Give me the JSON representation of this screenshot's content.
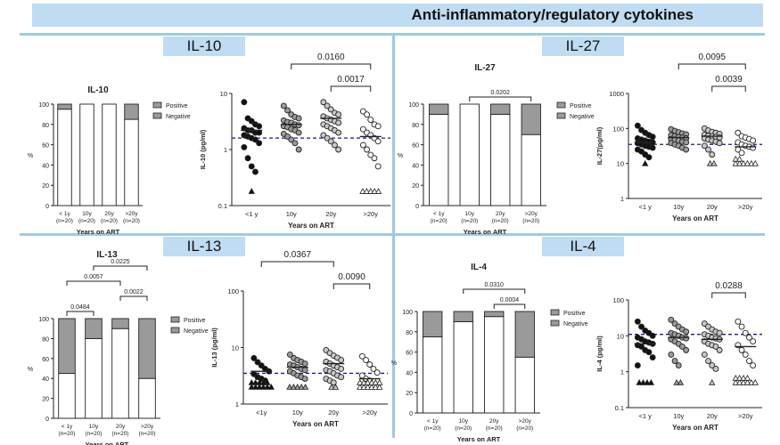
{
  "header": {
    "title": "Anti-inflammatory/regulatory cytokines"
  },
  "panels": [
    {
      "label": "IL-10"
    },
    {
      "label": "IL-27"
    },
    {
      "label": "IL-13"
    },
    {
      "label": "IL-4"
    }
  ],
  "colors": {
    "band": "#bfdcf2",
    "divider": "#9dcbe6",
    "negative": "#9a9a9a",
    "positive": "#ffffff",
    "median": "#1a1a8c"
  },
  "chart_data": [
    {
      "type": "bar",
      "stacked": true,
      "title": "IL-10",
      "categories": [
        "< 1y\n(n=20)",
        "10y\n(n=20)",
        "20y\n(n=20)",
        ">20y\n(n=20)"
      ],
      "series": [
        {
          "name": "Positive",
          "values": [
            95,
            100,
            100,
            85
          ]
        },
        {
          "name": "Negative",
          "values": [
            5,
            0,
            0,
            15
          ]
        }
      ],
      "ylabel": "%",
      "xlabel": "Years on ART",
      "ylim": [
        0,
        100
      ],
      "yticks": [
        "0",
        "20",
        "40",
        "60",
        "80",
        "100"
      ],
      "legend": "right"
    },
    {
      "type": "scatter",
      "ylabel": "IL-10 (pg/ml)",
      "xlabel": "Years on ART",
      "yscale": "log",
      "ylim": [
        0.1,
        10
      ],
      "yticks": [
        "0.1",
        "1",
        "10"
      ],
      "categories": [
        "<1 y",
        "10y",
        "20y",
        ">20y"
      ],
      "median_line": 1.6,
      "medians": [
        2.2,
        2.8,
        3.6,
        1.7
      ],
      "brackets": [
        {
          "from": 1,
          "to": 3,
          "label": "0.0160"
        },
        {
          "from": 2,
          "to": 3,
          "label": "0.0017"
        }
      ],
      "groups": [
        {
          "name": "<1 y",
          "fill": "#111111",
          "values": [
            7.0,
            3.6,
            3.2,
            2.8,
            2.6,
            2.4,
            2.2,
            2.2,
            2.0,
            2.0,
            1.8,
            1.7,
            1.6,
            1.5,
            1.3,
            1.1,
            0.7,
            0.5,
            0.4
          ],
          "below": [
            0.18
          ]
        },
        {
          "name": "10y",
          "fill": "#9a9a9a",
          "values": [
            6.0,
            5.0,
            4.2,
            3.8,
            3.6,
            3.3,
            3.1,
            3.0,
            2.8,
            2.7,
            2.6,
            2.5,
            2.3,
            2.2,
            2.0,
            1.9,
            1.7,
            1.5,
            1.3,
            1.0
          ],
          "below": []
        },
        {
          "name": "20y",
          "fill": "#c8c8c8",
          "values": [
            7.0,
            6.0,
            5.2,
            4.5,
            4.2,
            3.9,
            3.6,
            3.4,
            3.2,
            3.0,
            2.8,
            2.6,
            2.4,
            2.2,
            2.0,
            1.8,
            1.6,
            1.4,
            1.2,
            1.0
          ],
          "below": []
        },
        {
          "name": ">20y",
          "fill": "#ffffff",
          "values": [
            4.8,
            4.2,
            3.4,
            2.8,
            2.6,
            2.3,
            2.0,
            1.8,
            1.6,
            1.4,
            1.2,
            1.0,
            0.8,
            0.7,
            0.5
          ],
          "below": [
            0.18,
            0.18,
            0.18,
            0.18,
            0.18
          ]
        }
      ]
    },
    {
      "type": "bar",
      "stacked": true,
      "title": "IL-27",
      "categories": [
        "< 1y\n(n=20)",
        "10y\n(n=20)",
        "20y\n(n=20)",
        ">20y\n(n=20)"
      ],
      "series": [
        {
          "name": "Positive",
          "values": [
            90,
            100,
            90,
            70
          ]
        },
        {
          "name": "Negative",
          "values": [
            10,
            0,
            10,
            30
          ]
        }
      ],
      "ylabel": "%",
      "xlabel": "Years on ART",
      "ylim": [
        0,
        100
      ],
      "yticks": [
        "0",
        "20",
        "40",
        "60",
        "80",
        "100"
      ],
      "brackets": [
        {
          "from": 1,
          "to": 3,
          "label": "0.0202"
        }
      ],
      "legend": "right"
    },
    {
      "type": "scatter",
      "ylabel": "IL-27(pg/ml)",
      "xlabel": "Years on ART",
      "yscale": "log",
      "ylim": [
        1,
        1000
      ],
      "yticks": [
        "1",
        "10",
        "100",
        "1000"
      ],
      "categories": [
        "<1 y",
        "10y",
        "20y",
        ">20y"
      ],
      "median_line": 35,
      "medians": [
        40,
        55,
        60,
        30
      ],
      "brackets": [
        {
          "from": 1,
          "to": 3,
          "label": "0.0095"
        },
        {
          "from": 2,
          "to": 3,
          "label": "0.0039"
        }
      ],
      "groups": [
        {
          "name": "<1 y",
          "fill": "#111111",
          "values": [
            120,
            90,
            75,
            65,
            58,
            52,
            48,
            45,
            42,
            40,
            38,
            35,
            32,
            30,
            28,
            25,
            22,
            18,
            15
          ],
          "below": [
            10
          ]
        },
        {
          "name": "10y",
          "fill": "#9a9a9a",
          "values": [
            95,
            85,
            78,
            72,
            68,
            64,
            60,
            57,
            55,
            52,
            50,
            48,
            45,
            42,
            40,
            38,
            35,
            32,
            28,
            25
          ],
          "below": []
        },
        {
          "name": "20y",
          "fill": "#c8c8c8",
          "values": [
            100,
            88,
            80,
            75,
            70,
            66,
            62,
            60,
            58,
            55,
            52,
            48,
            45,
            42,
            38,
            32,
            25,
            18
          ],
          "below": [
            10,
            10
          ]
        },
        {
          "name": ">20y",
          "fill": "#ffffff",
          "values": [
            75,
            60,
            55,
            50,
            45,
            40,
            35,
            32,
            30,
            28,
            25,
            20
          ],
          "below": [
            10,
            10,
            10,
            10,
            10,
            10,
            10,
            10
          ]
        }
      ]
    },
    {
      "type": "bar",
      "stacked": true,
      "title": "IL-13",
      "categories": [
        "< 1y\n(n=20)",
        "10y\n(n=20)",
        "20y\n(n=20)",
        ">20y\n(n=20)"
      ],
      "series": [
        {
          "name": "Positive",
          "values": [
            45,
            80,
            90,
            40
          ]
        },
        {
          "name": "Negative",
          "values": [
            55,
            20,
            10,
            60
          ]
        }
      ],
      "ylabel": "%",
      "xlabel": "Years on ART",
      "ylim": [
        0,
        100
      ],
      "yticks": [
        "0",
        "20",
        "40",
        "60",
        "80",
        "100"
      ],
      "brackets": [
        {
          "from": 0,
          "to": 1,
          "label": "0.0484"
        },
        {
          "from": 2,
          "to": 3,
          "label": "0.0022"
        },
        {
          "from": 0,
          "to": 2,
          "label": "0.0057"
        },
        {
          "from": 1,
          "to": 3,
          "label": "0.0225"
        }
      ],
      "legend": "right"
    },
    {
      "type": "scatter",
      "ylabel": "IL-13 (pg/ml)",
      "xlabel": "Years on ART",
      "yscale": "log",
      "ylim": [
        1,
        100
      ],
      "yticks": [
        "1",
        "10",
        "100"
      ],
      "categories": [
        "<1y",
        "10y",
        "20y",
        ">20y"
      ],
      "median_line": 3.5,
      "medians": [
        3.8,
        4.5,
        5.2,
        2.8
      ],
      "brackets": [
        {
          "from": 0,
          "to": 2,
          "label": "0.0367"
        },
        {
          "from": 2,
          "to": 3,
          "label": "0.0090"
        }
      ],
      "groups": [
        {
          "name": "<1y",
          "fill": "#111111",
          "values": [
            6.5,
            5.5,
            4.8,
            4.2,
            3.8,
            3.4,
            3.0,
            2.8,
            2.6
          ],
          "below": [
            2,
            2,
            2,
            2,
            2,
            2,
            2,
            2,
            2,
            2,
            2
          ]
        },
        {
          "name": "10y",
          "fill": "#9a9a9a",
          "values": [
            7.5,
            6.5,
            6.0,
            5.6,
            5.2,
            5.0,
            4.8,
            4.5,
            4.2,
            4.0,
            3.8,
            3.5,
            3.2,
            3.0,
            2.8
          ],
          "below": [
            2,
            2,
            2,
            2,
            2
          ]
        },
        {
          "name": "20y",
          "fill": "#c8c8c8",
          "values": [
            9.0,
            8.0,
            7.2,
            6.6,
            6.0,
            5.6,
            5.2,
            4.8,
            4.5,
            4.2,
            4.0,
            3.8,
            3.5,
            3.2,
            3.0,
            2.8,
            2.6,
            2.4
          ],
          "below": [
            2,
            2
          ]
        },
        {
          "name": ">20y",
          "fill": "#ffffff",
          "values": [
            7.0,
            6.0,
            5.0,
            4.2,
            3.6,
            3.2,
            2.8,
            2.6
          ],
          "below": [
            2,
            2,
            2,
            2,
            2,
            2,
            2,
            2,
            2,
            2,
            2,
            2
          ]
        }
      ]
    },
    {
      "type": "bar",
      "stacked": true,
      "title": "IL-4",
      "categories": [
        "< 1y\n(n=20)",
        "10y\n(n=20)",
        "20y\n(n=20)",
        ">20y\n(n=20)"
      ],
      "series": [
        {
          "name": "Positive",
          "values": [
            75,
            90,
            95,
            55
          ]
        },
        {
          "name": "Negative",
          "values": [
            25,
            10,
            5,
            45
          ]
        }
      ],
      "ylabel": "%",
      "xlabel": "Years on ART",
      "ylim": [
        0,
        100
      ],
      "yticks": [
        "0",
        "20",
        "40",
        "60",
        "80",
        "100"
      ],
      "brackets": [
        {
          "from": 2,
          "to": 3,
          "label": "0.0004"
        },
        {
          "from": 1,
          "to": 3,
          "label": "0.0310"
        }
      ],
      "legend": "right"
    },
    {
      "type": "scatter",
      "ylabel": "IL-4 (pg/ml)",
      "xlabel": "Years on ART",
      "yscale": "log",
      "ylim": [
        0.1,
        100
      ],
      "yticks": [
        "0.1",
        "1",
        "10",
        "100"
      ],
      "categories": [
        "<1 y",
        "10y",
        "20y",
        ">20y"
      ],
      "median_line": 11,
      "medians": [
        6.0,
        9.0,
        8.0,
        5.0
      ],
      "brackets": [
        {
          "from": 2,
          "to": 3,
          "label": "0.0288"
        }
      ],
      "groups": [
        {
          "name": "<1 y",
          "fill": "#111111",
          "values": [
            25,
            18,
            14,
            12,
            10,
            9,
            8,
            7,
            6.5,
            6,
            5.5,
            5,
            4,
            3.5,
            2.5,
            1.5
          ],
          "below": [
            0.5,
            0.5,
            0.5,
            0.5
          ]
        },
        {
          "name": "10y",
          "fill": "#9a9a9a",
          "values": [
            28,
            22,
            18,
            15,
            13,
            12,
            11,
            10,
            9,
            8.5,
            8,
            7,
            6,
            5,
            4,
            3,
            2,
            1.5
          ],
          "below": [
            0.5,
            0.5
          ]
        },
        {
          "name": "20y",
          "fill": "#c8c8c8",
          "values": [
            22,
            18,
            15,
            13,
            12,
            11,
            10,
            9,
            8.5,
            8,
            7,
            6,
            5.5,
            5,
            4,
            3,
            2,
            1.5,
            1.2
          ],
          "below": [
            0.5
          ]
        },
        {
          "name": ">20y",
          "fill": "#ffffff",
          "values": [
            25,
            18,
            12,
            9,
            7,
            5.5,
            4,
            3,
            2,
            1.5
          ],
          "below": [
            0.5,
            0.5,
            0.5,
            0.5,
            0.5,
            0.5,
            0.5,
            0.5,
            0.5,
            0.5
          ]
        }
      ]
    }
  ]
}
